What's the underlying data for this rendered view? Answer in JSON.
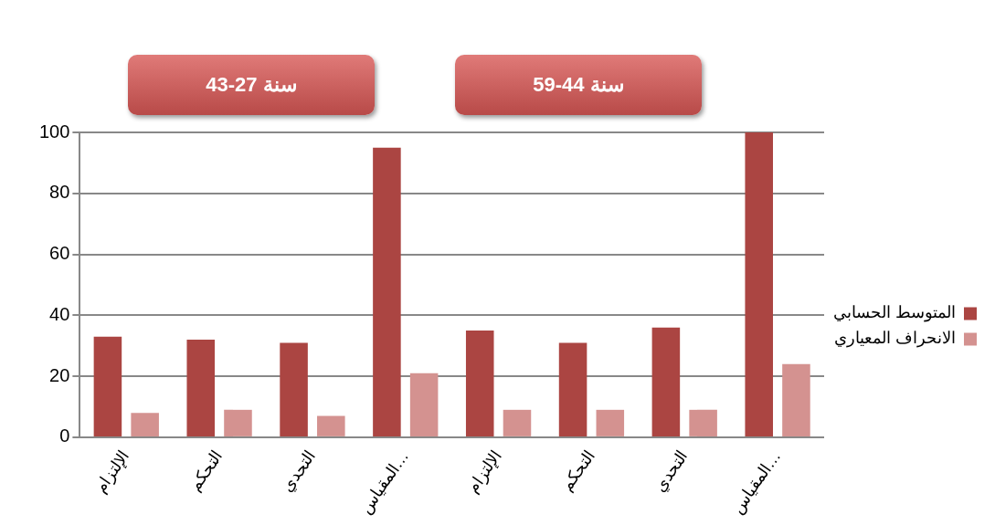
{
  "chart_data": {
    "type": "bar",
    "categories": [
      "الإلتزام",
      "التحكم",
      "التحدي",
      "المقياس…",
      "الإلتزام",
      "التحكم",
      "التحدي",
      "المقياس…"
    ],
    "series": [
      {
        "name": "المتوسط الحسابي",
        "color": "#ab4542",
        "values": [
          33,
          32,
          31,
          95,
          35,
          31,
          36,
          100
        ]
      },
      {
        "name": "الانحراف المعياري",
        "color": "#d49290",
        "values": [
          8,
          9,
          7,
          21,
          9,
          9,
          9,
          24
        ]
      }
    ],
    "ylim": [
      0,
      100
    ],
    "yticks": [
      0,
      20,
      40,
      60,
      80,
      100
    ],
    "grid": "y",
    "legend": "right",
    "annotations": [
      "سنة 27-43",
      "سنة 44-59"
    ]
  }
}
